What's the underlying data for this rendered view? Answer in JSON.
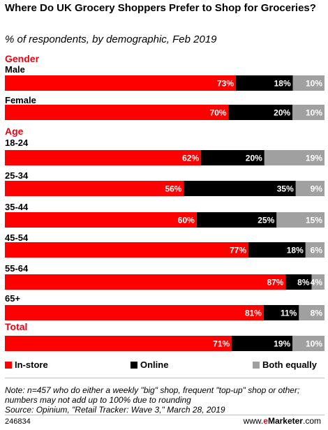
{
  "title": "Where Do UK Grocery Shoppers Prefer to Shop for Groceries?",
  "subtitle": "% of respondents, by demographic, Feb 2019",
  "colors": {
    "in_store": "#ff0000",
    "online": "#000000",
    "both_equally": "#a0a0a0",
    "group_heading": "#e30613"
  },
  "chart_data": {
    "type": "bar",
    "orientation": "horizontal-stacked-100",
    "title": "Where Do UK Grocery Shoppers Prefer to Shop for Groceries?",
    "subtitle": "% of respondents, by demographic, Feb 2019",
    "series_names": [
      "In-store",
      "Online",
      "Both equally"
    ],
    "groups": [
      {
        "heading": "Gender",
        "rows": [
          {
            "label": "Male",
            "values": [
              73,
              18,
              10
            ]
          },
          {
            "label": "Female",
            "values": [
              70,
              20,
              10
            ]
          }
        ]
      },
      {
        "heading": "Age",
        "rows": [
          {
            "label": "18-24",
            "values": [
              62,
              20,
              19
            ]
          },
          {
            "label": "25-34",
            "values": [
              56,
              35,
              9
            ]
          },
          {
            "label": "35-44",
            "values": [
              60,
              25,
              15
            ]
          },
          {
            "label": "45-54",
            "values": [
              77,
              18,
              6
            ]
          },
          {
            "label": "55-64",
            "values": [
              87,
              8,
              4
            ]
          },
          {
            "label": "65+",
            "values": [
              81,
              11,
              8
            ]
          }
        ]
      },
      {
        "heading": "Total",
        "rows": [
          {
            "label": "",
            "values": [
              71,
              19,
              10
            ]
          }
        ]
      }
    ],
    "legend": {
      "position": "bottom",
      "items": [
        "In-store",
        "Online",
        "Both equally"
      ]
    }
  },
  "legend": {
    "in_store": "In-store",
    "online": "Online",
    "both_equally": "Both equally"
  },
  "note": "Note: n=457 who do either a weekly \"big\" shop, frequent \"top-up\" shop or other; numbers may not add up to 100% due to rounding",
  "source": "Source: Opinium, \"Retail Tracker: Wave 3,\" March 28, 2019",
  "footer": {
    "chart_id": "246834",
    "brand_e": "e",
    "brand_rest": "Marketer",
    "brand_suffix": ".com",
    "brand_prefix": "www."
  }
}
